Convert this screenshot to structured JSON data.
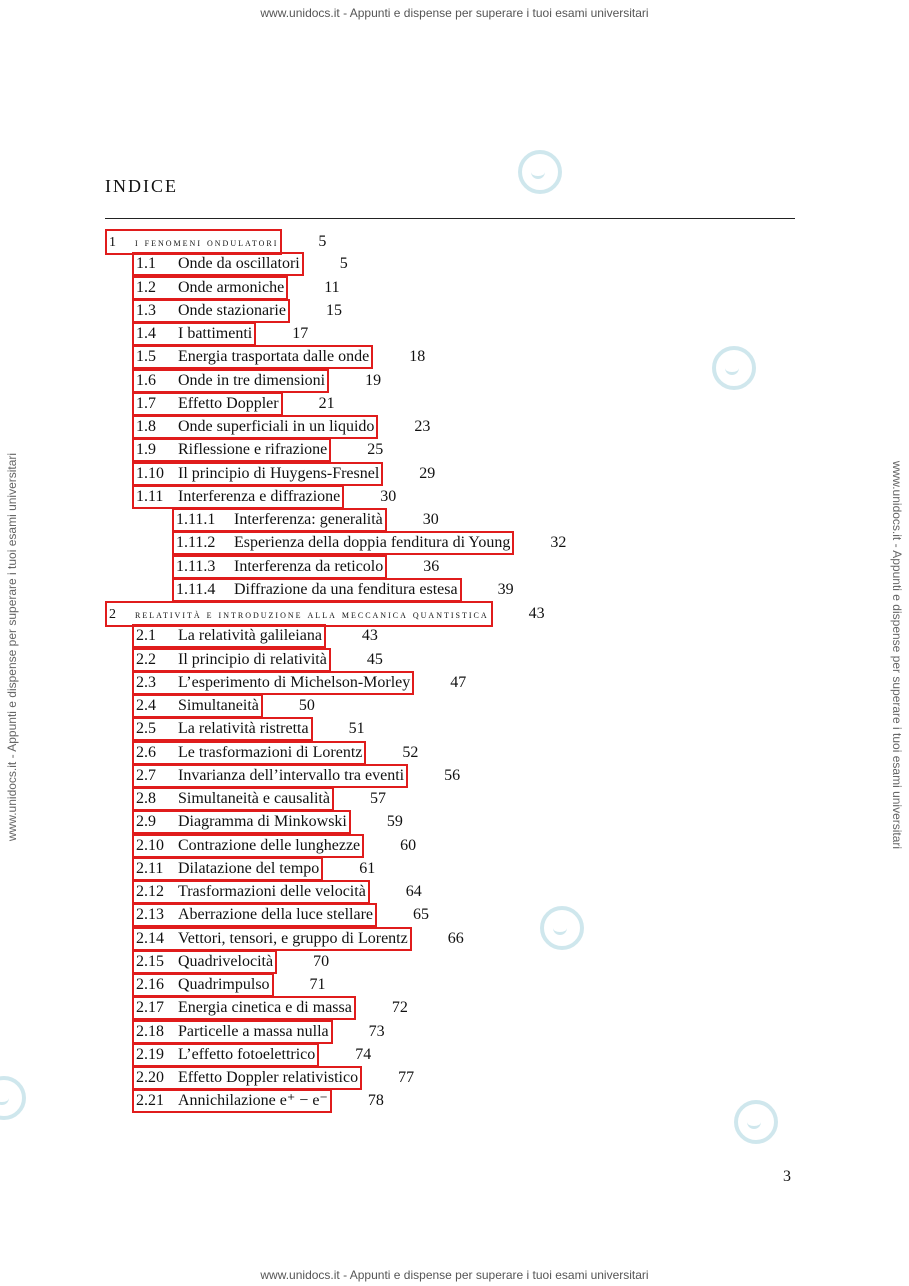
{
  "watermark": {
    "text": "www.unidocs.it - Appunti e dispense per superare i tuoi esami universitari",
    "logo_icon": "unidocs-logo-icon"
  },
  "title": "INDICE",
  "toc": [
    {
      "level": 0,
      "num": "1",
      "title": "i fenomeni ondulatori",
      "page": "5"
    },
    {
      "level": 1,
      "num": "1.1",
      "title": "Onde da oscillatori",
      "page": "5"
    },
    {
      "level": 1,
      "num": "1.2",
      "title": "Onde armoniche",
      "page": "11"
    },
    {
      "level": 1,
      "num": "1.3",
      "title": "Onde stazionarie",
      "page": "15"
    },
    {
      "level": 1,
      "num": "1.4",
      "title": "I battimenti",
      "page": "17"
    },
    {
      "level": 1,
      "num": "1.5",
      "title": "Energia trasportata dalle onde",
      "page": "18"
    },
    {
      "level": 1,
      "num": "1.6",
      "title": "Onde in tre dimensioni",
      "page": "19"
    },
    {
      "level": 1,
      "num": "1.7",
      "title": "Effetto Doppler",
      "page": "21"
    },
    {
      "level": 1,
      "num": "1.8",
      "title": "Onde superficiali in un liquido",
      "page": "23"
    },
    {
      "level": 1,
      "num": "1.9",
      "title": "Riflessione e rifrazione",
      "page": "25"
    },
    {
      "level": 1,
      "num": "1.10",
      "title": "Il principio di Huygens-Fresnel",
      "page": "29"
    },
    {
      "level": 1,
      "num": "1.11",
      "title": "Interferenza e diffrazione",
      "page": "30"
    },
    {
      "level": 2,
      "num": "1.11.1",
      "title": "Interferenza: generalità",
      "page": "30"
    },
    {
      "level": 2,
      "num": "1.11.2",
      "title": "Esperienza della doppia fenditura di Young",
      "page": "32"
    },
    {
      "level": 2,
      "num": "1.11.3",
      "title": "Interferenza da reticolo",
      "page": "36"
    },
    {
      "level": 2,
      "num": "1.11.4",
      "title": "Diffrazione da una fenditura estesa",
      "page": "39"
    },
    {
      "level": 0,
      "num": "2",
      "title": "relatività e introduzione alla meccanica quantistica",
      "page": "43"
    },
    {
      "level": 1,
      "num": "2.1",
      "title": "La relatività galileiana",
      "page": "43"
    },
    {
      "level": 1,
      "num": "2.2",
      "title": "Il principio di relatività",
      "page": "45"
    },
    {
      "level": 1,
      "num": "2.3",
      "title": "L’esperimento di Michelson-Morley",
      "page": "47"
    },
    {
      "level": 1,
      "num": "2.4",
      "title": "Simultaneità",
      "page": "50"
    },
    {
      "level": 1,
      "num": "2.5",
      "title": "La relatività ristretta",
      "page": "51"
    },
    {
      "level": 1,
      "num": "2.6",
      "title": "Le trasformazioni di Lorentz",
      "page": "52"
    },
    {
      "level": 1,
      "num": "2.7",
      "title": "Invarianza dell’intervallo tra eventi",
      "page": "56"
    },
    {
      "level": 1,
      "num": "2.8",
      "title": "Simultaneità e causalità",
      "page": "57"
    },
    {
      "level": 1,
      "num": "2.9",
      "title": "Diagramma di Minkowski",
      "page": "59"
    },
    {
      "level": 1,
      "num": "2.10",
      "title": "Contrazione delle lunghezze",
      "page": "60"
    },
    {
      "level": 1,
      "num": "2.11",
      "title": "Dilatazione del tempo",
      "page": "61"
    },
    {
      "level": 1,
      "num": "2.12",
      "title": "Trasformazioni delle velocità",
      "page": "64"
    },
    {
      "level": 1,
      "num": "2.13",
      "title": "Aberrazione della luce stellare",
      "page": "65"
    },
    {
      "level": 1,
      "num": "2.14",
      "title": "Vettori, tensori, e gruppo di Lorentz",
      "page": "66"
    },
    {
      "level": 1,
      "num": "2.15",
      "title": "Quadrivelocità",
      "page": "70"
    },
    {
      "level": 1,
      "num": "2.16",
      "title": "Quadrimpulso",
      "page": "71"
    },
    {
      "level": 1,
      "num": "2.17",
      "title": "Energia cinetica e di massa",
      "page": "72"
    },
    {
      "level": 1,
      "num": "2.18",
      "title": "Particelle a massa nulla",
      "page": "73"
    },
    {
      "level": 1,
      "num": "2.19",
      "title": "L’effetto fotoelettrico",
      "page": "74"
    },
    {
      "level": 1,
      "num": "2.20",
      "title": "Effetto Doppler relativistico",
      "page": "77"
    },
    {
      "level": 1,
      "num": "2.21",
      "title": "Annichilazione e⁺ − e⁻",
      "page": "78"
    }
  ],
  "page_number": "3"
}
